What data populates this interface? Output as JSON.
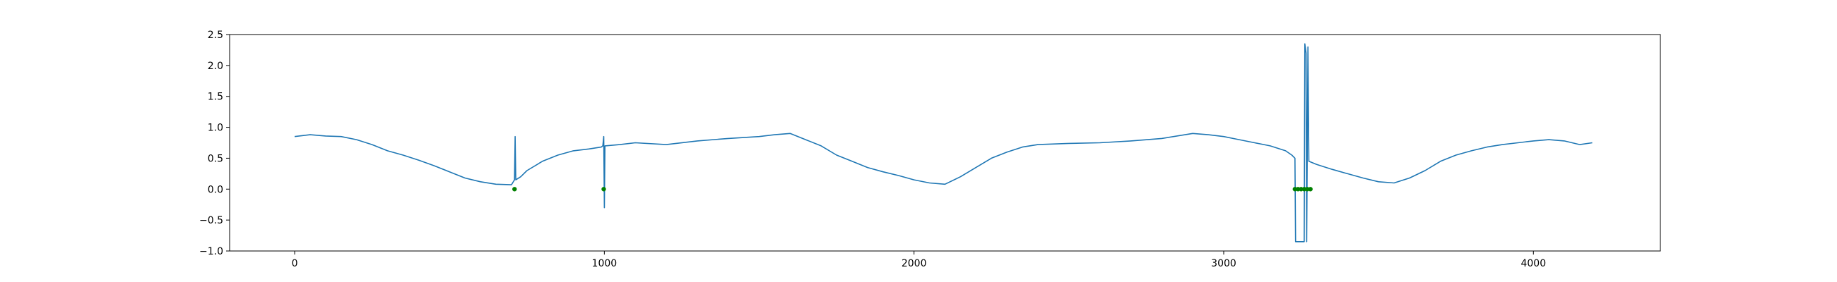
{
  "chart_data": {
    "type": "line",
    "title": "",
    "xlabel": "",
    "ylabel": "",
    "xlim": [
      -210,
      4410
    ],
    "ylim": [
      -1.0,
      2.5
    ],
    "x_ticks": [
      0,
      1000,
      2000,
      3000,
      4000
    ],
    "y_ticks": [
      -1.0,
      -0.5,
      0.0,
      0.5,
      1.0,
      1.5,
      2.0,
      2.5
    ],
    "x_tick_labels": [
      "0",
      "1000",
      "2000",
      "3000",
      "4000"
    ],
    "y_tick_labels": [
      "−1.0",
      "−0.5",
      "0.0",
      "0.5",
      "1.0",
      "1.5",
      "2.0",
      "2.5"
    ],
    "grid": false,
    "legend": "none",
    "series": [
      {
        "kind": "line",
        "color": "#1f77b4",
        "x": [
          0,
          50,
          100,
          150,
          200,
          250,
          300,
          350,
          400,
          450,
          500,
          550,
          600,
          650,
          700,
          710,
          712,
          714,
          730,
          750,
          800,
          850,
          900,
          950,
          990,
          995,
          998,
          1000,
          1002,
          1050,
          1100,
          1200,
          1300,
          1400,
          1500,
          1550,
          1600,
          1650,
          1700,
          1750,
          1800,
          1850,
          1900,
          1950,
          2000,
          2050,
          2100,
          2150,
          2200,
          2250,
          2300,
          2350,
          2400,
          2500,
          2600,
          2700,
          2800,
          2900,
          2950,
          3000,
          3050,
          3100,
          3150,
          3200,
          3220,
          3230,
          3232,
          3260,
          3262,
          3266,
          3268,
          3272,
          3275,
          3300,
          3350,
          3400,
          3450,
          3500,
          3550,
          3600,
          3650,
          3700,
          3750,
          3800,
          3850,
          3900,
          3950,
          4000,
          4050,
          4100,
          4150,
          4190
        ],
        "y": [
          0.85,
          0.88,
          0.86,
          0.85,
          0.8,
          0.72,
          0.62,
          0.55,
          0.47,
          0.38,
          0.28,
          0.18,
          0.12,
          0.08,
          0.07,
          0.15,
          0.85,
          0.15,
          0.2,
          0.3,
          0.45,
          0.55,
          0.62,
          0.65,
          0.68,
          0.7,
          0.85,
          -0.3,
          0.7,
          0.72,
          0.75,
          0.72,
          0.78,
          0.82,
          0.85,
          0.88,
          0.9,
          0.8,
          0.7,
          0.55,
          0.45,
          0.35,
          0.28,
          0.22,
          0.15,
          0.1,
          0.08,
          0.2,
          0.35,
          0.5,
          0.6,
          0.68,
          0.72,
          0.74,
          0.75,
          0.78,
          0.82,
          0.9,
          0.88,
          0.85,
          0.8,
          0.75,
          0.7,
          0.62,
          0.55,
          0.5,
          -0.85,
          -0.85,
          2.35,
          2.2,
          -0.85,
          2.3,
          0.45,
          0.4,
          0.32,
          0.25,
          0.18,
          0.12,
          0.1,
          0.18,
          0.3,
          0.45,
          0.55,
          0.62,
          0.68,
          0.72,
          0.75,
          0.78,
          0.8,
          0.78,
          0.72,
          0.75
        ]
      },
      {
        "kind": "scatter",
        "color": "#008000",
        "x": [
          710,
          998,
          3230,
          3240,
          3250,
          3260,
          3270,
          3280
        ],
        "y": [
          0.0,
          0.0,
          0.0,
          0.0,
          0.0,
          0.0,
          0.0,
          0.0
        ]
      }
    ]
  }
}
